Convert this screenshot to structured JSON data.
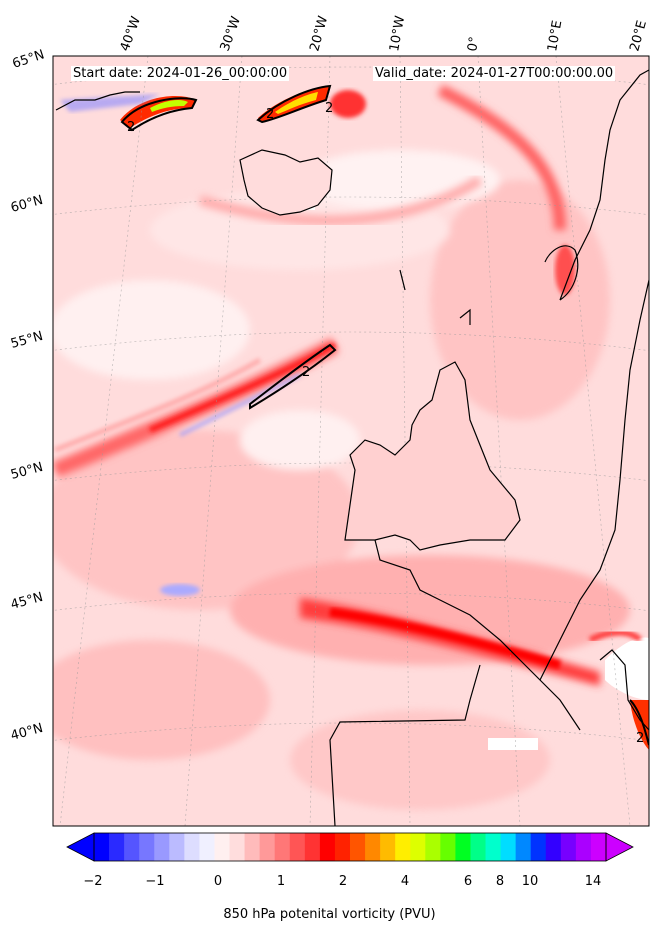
{
  "header": {
    "start_date": "Start date: 2024-01-26_00:00:00",
    "valid_date": "Valid_date: 2024-01-27T00:00:00.00"
  },
  "map": {
    "lon_labels": [
      "40°W",
      "30°W",
      "20°W",
      "10°W",
      "0°",
      "10°E",
      "20°E"
    ],
    "lat_labels": [
      "65°N",
      "60°N",
      "55°N",
      "50°N",
      "45°N",
      "40°N"
    ],
    "contour_label": "2"
  },
  "colorbar": {
    "title": "850 hPa potenital vorticity (PVU)",
    "tick_labels": [
      "−2",
      "−1",
      "0",
      "1",
      "2",
      "4",
      "6",
      "8",
      "10",
      "14"
    ],
    "colors": [
      "#0000ff",
      "#2a2aff",
      "#5555ff",
      "#7777ff",
      "#9999ff",
      "#bbbbff",
      "#ddddff",
      "#f0f0ff",
      "#fff0f0",
      "#ffdddd",
      "#ffbbbb",
      "#ff9999",
      "#ff7777",
      "#ff5555",
      "#ff3333",
      "#ff0000",
      "#ff2200",
      "#ff5500",
      "#ff8800",
      "#ffbb00",
      "#ffee00",
      "#ddff00",
      "#aaff00",
      "#66ff00",
      "#00ff22",
      "#00ff88",
      "#00ffcc",
      "#00ddff",
      "#0088ff",
      "#0033ff",
      "#3300ff",
      "#7700ff",
      "#aa00ff",
      "#cc00ff"
    ]
  }
}
